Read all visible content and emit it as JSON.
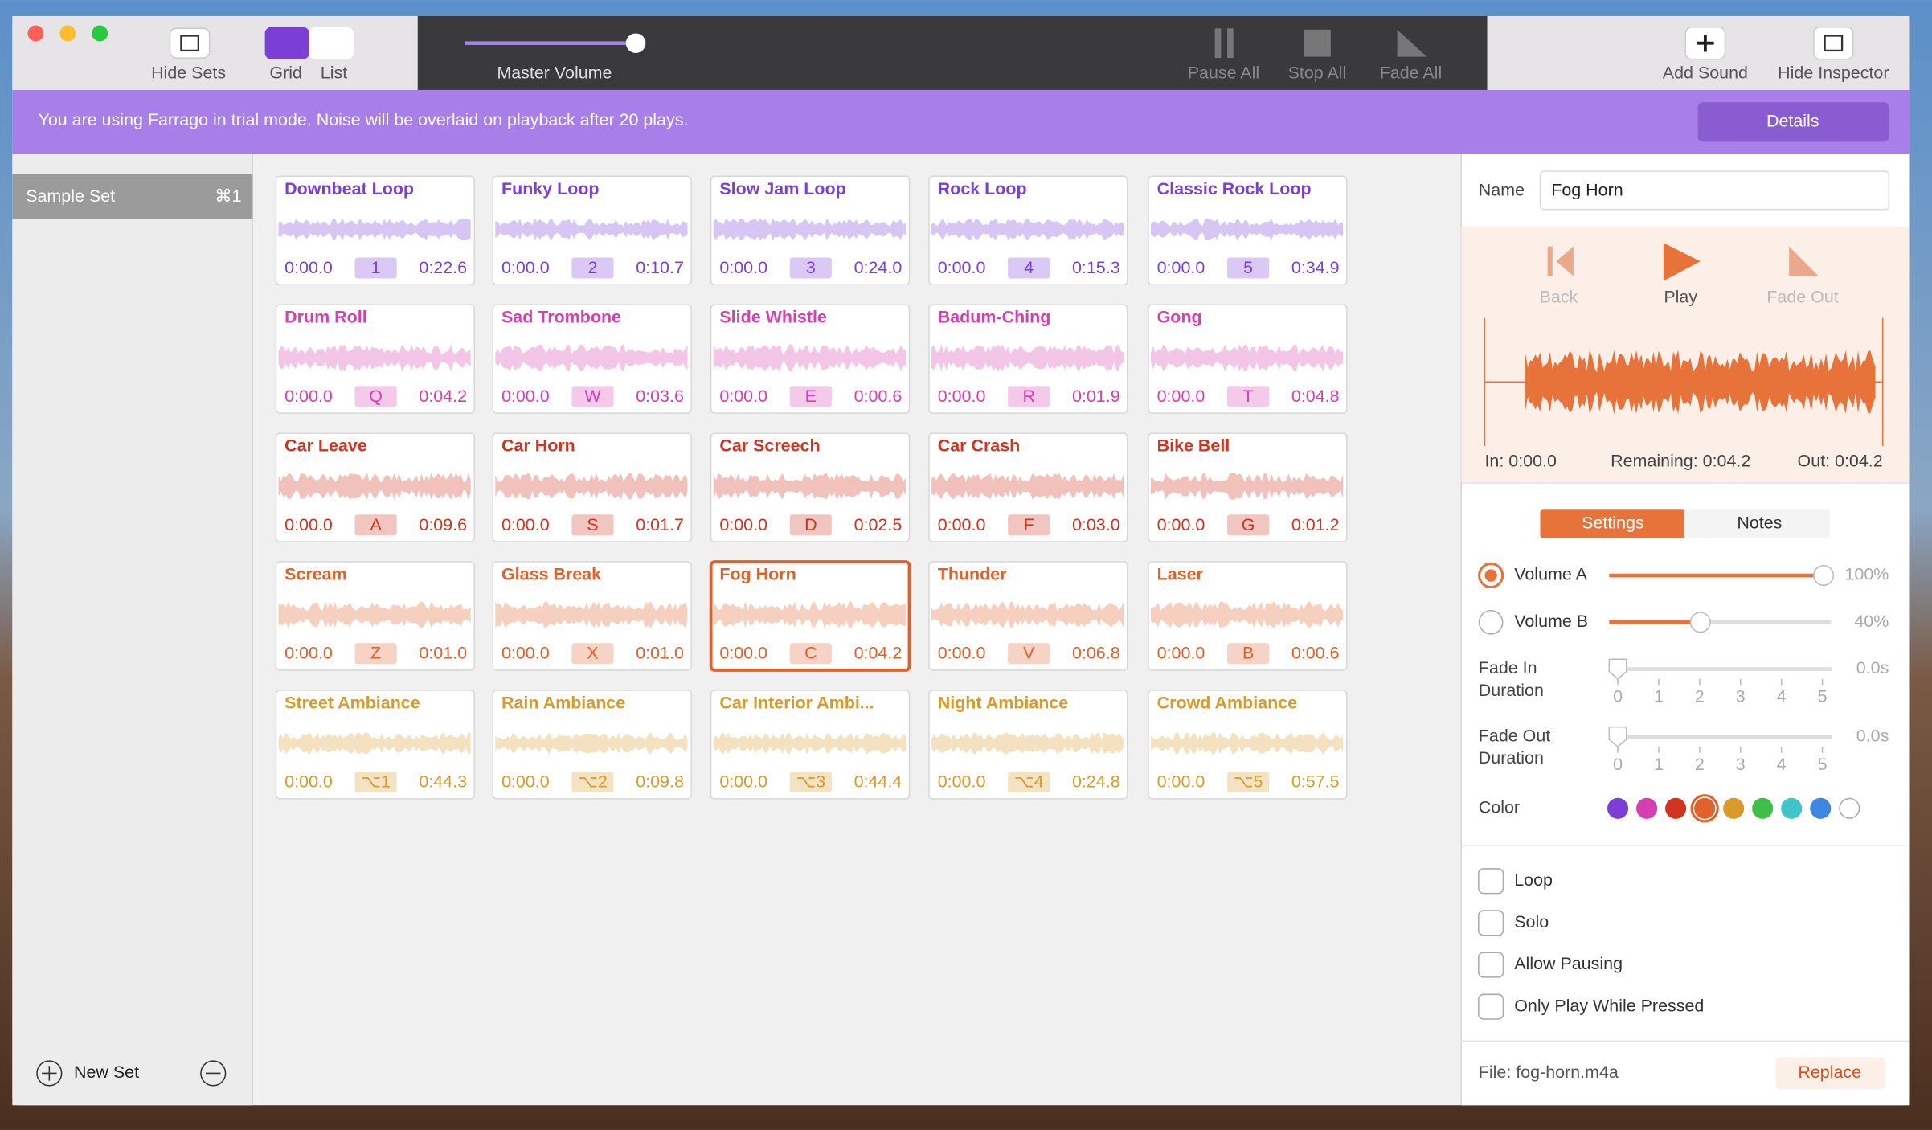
{
  "toolbar": {
    "hide_sets": "Hide Sets",
    "grid": "Grid",
    "list": "List",
    "master_volume": "Master Volume",
    "pause_all": "Pause All",
    "stop_all": "Stop All",
    "fade_all": "Fade All",
    "add_sound": "Add Sound",
    "hide_inspector": "Hide Inspector"
  },
  "banner": {
    "message": "You are using Farrago in trial mode. Noise will be overlaid on playback after 20 plays.",
    "button": "Details"
  },
  "sidebar": {
    "sets": [
      {
        "name": "Sample Set",
        "shortcut": "⌘1"
      }
    ],
    "new_set": "New Set"
  },
  "tile_rows": [
    {
      "color": "#7b3fd6",
      "tiles": [
        {
          "title": "Downbeat Loop",
          "start": "0:00.0",
          "key": "1",
          "duration": "0:22.6"
        },
        {
          "title": "Funky Loop",
          "start": "0:00.0",
          "key": "2",
          "duration": "0:10.7"
        },
        {
          "title": "Slow Jam Loop",
          "start": "0:00.0",
          "key": "3",
          "duration": "0:24.0"
        },
        {
          "title": "Rock Loop",
          "start": "0:00.0",
          "key": "4",
          "duration": "0:15.3"
        },
        {
          "title": "Classic Rock Loop",
          "start": "0:00.0",
          "key": "5",
          "duration": "0:34.9"
        }
      ]
    },
    {
      "color": "#d63fb0",
      "tiles": [
        {
          "title": "Drum Roll",
          "start": "0:00.0",
          "key": "Q",
          "duration": "0:04.2"
        },
        {
          "title": "Sad Trombone",
          "start": "0:00.0",
          "key": "W",
          "duration": "0:03.6"
        },
        {
          "title": "Slide Whistle",
          "start": "0:00.0",
          "key": "E",
          "duration": "0:00.6"
        },
        {
          "title": "Badum-Ching",
          "start": "0:00.0",
          "key": "R",
          "duration": "0:01.9"
        },
        {
          "title": "Gong",
          "start": "0:00.0",
          "key": "T",
          "duration": "0:04.8"
        }
      ]
    },
    {
      "color": "#d0331f",
      "tiles": [
        {
          "title": "Car Leave",
          "start": "0:00.0",
          "key": "A",
          "duration": "0:09.6"
        },
        {
          "title": "Car Horn",
          "start": "0:00.0",
          "key": "S",
          "duration": "0:01.7"
        },
        {
          "title": "Car Screech",
          "start": "0:00.0",
          "key": "D",
          "duration": "0:02.5"
        },
        {
          "title": "Car Crash",
          "start": "0:00.0",
          "key": "F",
          "duration": "0:03.0"
        },
        {
          "title": "Bike Bell",
          "start": "0:00.0",
          "key": "G",
          "duration": "0:01.2"
        }
      ]
    },
    {
      "color": "#e0612b",
      "tiles": [
        {
          "title": "Scream",
          "start": "0:00.0",
          "key": "Z",
          "duration": "0:01.0"
        },
        {
          "title": "Glass Break",
          "start": "0:00.0",
          "key": "X",
          "duration": "0:01.0"
        },
        {
          "title": "Fog Horn",
          "start": "0:00.0",
          "key": "C",
          "duration": "0:04.2",
          "selected": true
        },
        {
          "title": "Thunder",
          "start": "0:00.0",
          "key": "V",
          "duration": "0:06.8"
        },
        {
          "title": "Laser",
          "start": "0:00.0",
          "key": "B",
          "duration": "0:00.6"
        }
      ]
    },
    {
      "color": "#d89a2a",
      "tiles": [
        {
          "title": "Street Ambiance",
          "start": "0:00.0",
          "key": "⌥1",
          "duration": "0:44.3"
        },
        {
          "title": "Rain Ambiance",
          "start": "0:00.0",
          "key": "⌥2",
          "duration": "0:09.8"
        },
        {
          "title": "Car Interior Ambi...",
          "start": "0:00.0",
          "key": "⌥3",
          "duration": "0:44.4"
        },
        {
          "title": "Night Ambiance",
          "start": "0:00.0",
          "key": "⌥4",
          "duration": "0:24.8"
        },
        {
          "title": "Crowd Ambiance",
          "start": "0:00.0",
          "key": "⌥5",
          "duration": "0:57.5"
        }
      ]
    }
  ],
  "inspector": {
    "name_label": "Name",
    "name": "Fog Horn",
    "back": "Back",
    "play": "Play",
    "fade_out": "Fade Out",
    "in": "In: 0:00.0",
    "remaining": "Remaining: 0:04.2",
    "out": "Out: 0:04.2",
    "tabs": [
      "Settings",
      "Notes"
    ],
    "volume_a": {
      "label": "Volume A",
      "value": "100%"
    },
    "volume_b": {
      "label": "Volume B",
      "value": "40%"
    },
    "fade_in": {
      "label": [
        "Fade In",
        "Duration"
      ],
      "value": "0.0s",
      "ticks": [
        "0",
        "1",
        "2",
        "3",
        "4",
        "5"
      ]
    },
    "fade_out_duration": {
      "label": [
        "Fade Out",
        "Duration"
      ],
      "value": "0.0s",
      "ticks": [
        "0",
        "1",
        "2",
        "3",
        "4",
        "5"
      ]
    },
    "color_label": "Color",
    "colors": [
      "#7b3fd6",
      "#d63fb0",
      "#d0331f",
      "#e0612b",
      "#d89a2a",
      "#3fbf4a",
      "#3fc4c9",
      "#3f86e0",
      "#ffffff"
    ],
    "selected_color": 3,
    "options": [
      "Loop",
      "Solo",
      "Allow Pausing",
      "Only Play While Pressed"
    ],
    "file": "File: fog-horn.m4a",
    "replace": "Replace"
  }
}
